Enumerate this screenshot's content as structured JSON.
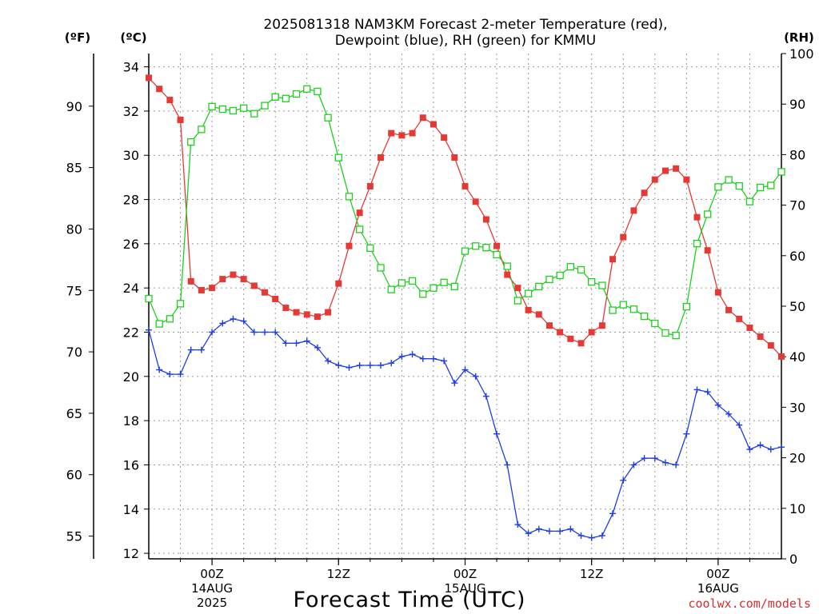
{
  "header": {
    "title_line1": "2025081318 NAM3KM Forecast 2-meter Temperature (red),",
    "title_line2": "Dewpoint (blue), RH (green) for KMMU",
    "unit_f": "(ºF)",
    "unit_c": "(ºC)",
    "unit_rh": "(RH)"
  },
  "footer": {
    "xlabel": "Forecast Time (UTC)",
    "credit": "coolwx.com/models"
  },
  "colors": {
    "temperature": "#e53935",
    "dewpoint": "#1e3de6",
    "rh": "#1fcf1f",
    "grid": "#9a9a9a",
    "credit": "#d32f2f"
  },
  "chart_data": {
    "type": "line",
    "title": "2025081318 NAM3KM Forecast 2-meter Temperature (red), Dewpoint (blue), RH (green) for KMMU",
    "xlabel": "Forecast Time (UTC)",
    "x_unit": "forecast hour (hourly from 2025081318)",
    "x": [
      0,
      1,
      2,
      3,
      4,
      5,
      6,
      7,
      8,
      9,
      10,
      11,
      12,
      13,
      14,
      15,
      16,
      17,
      18,
      19,
      20,
      21,
      22,
      23,
      24,
      25,
      26,
      27,
      28,
      29,
      30,
      31,
      32,
      33,
      34,
      35,
      36,
      37,
      38,
      39,
      40,
      41,
      42,
      43,
      44,
      45,
      46,
      47,
      48,
      49,
      50,
      51,
      52,
      53,
      54,
      55,
      56,
      57,
      58,
      59,
      60
    ],
    "xlim": [
      0,
      60
    ],
    "x_ticks": [
      {
        "hour": 6,
        "label": "00Z",
        "sub1": "14AUG",
        "sub2": "2025"
      },
      {
        "hour": 18,
        "label": "12Z",
        "sub1": "",
        "sub2": ""
      },
      {
        "hour": 30,
        "label": "00Z",
        "sub1": "15AUG",
        "sub2": ""
      },
      {
        "hour": 42,
        "label": "12Z",
        "sub1": "",
        "sub2": ""
      },
      {
        "hour": 54,
        "label": "00Z",
        "sub1": "16AUG",
        "sub2": ""
      }
    ],
    "y_celsius": {
      "label": "(ºC)",
      "lim": [
        11.75,
        34.6
      ],
      "ticks": [
        12,
        14,
        16,
        18,
        20,
        22,
        24,
        26,
        28,
        30,
        32,
        34
      ]
    },
    "y_fahrenheit": {
      "label": "(ºF)",
      "ticks": [
        55,
        60,
        65,
        70,
        75,
        80,
        85,
        90
      ]
    },
    "y_rh": {
      "label": "(RH)",
      "lim": [
        0,
        100
      ],
      "ticks": [
        0,
        10,
        20,
        30,
        40,
        50,
        60,
        70,
        80,
        90,
        100
      ]
    },
    "grid": true,
    "series": [
      {
        "name": "Temperature",
        "axis": "celsius",
        "color": "#e53935",
        "marker": "filled-square",
        "values": [
          33.5,
          33.0,
          32.5,
          31.6,
          24.3,
          23.9,
          24.0,
          24.4,
          24.6,
          24.4,
          24.1,
          23.8,
          23.5,
          23.1,
          22.9,
          22.8,
          22.7,
          22.9,
          24.2,
          25.9,
          27.4,
          28.6,
          29.9,
          31.0,
          30.9,
          31.0,
          31.7,
          31.4,
          30.8,
          29.9,
          28.6,
          27.9,
          27.1,
          25.9,
          24.6,
          24.0,
          23.0,
          22.8,
          22.3,
          22.0,
          21.7,
          21.5,
          22.0,
          22.3,
          25.3,
          26.3,
          27.5,
          28.3,
          28.9,
          29.3,
          29.4,
          28.9,
          27.2,
          25.7,
          23.8,
          23.0,
          22.6,
          22.2,
          21.8,
          21.4,
          20.9
        ]
      },
      {
        "name": "Dewpoint",
        "axis": "celsius",
        "color": "#1e3de6",
        "marker": "plus",
        "values": [
          22.1,
          20.3,
          20.1,
          20.1,
          21.2,
          21.2,
          22.0,
          22.4,
          22.6,
          22.5,
          22.0,
          22.0,
          22.0,
          21.5,
          21.5,
          21.6,
          21.3,
          20.7,
          20.5,
          20.4,
          20.5,
          20.5,
          20.5,
          20.6,
          20.9,
          21.0,
          20.8,
          20.8,
          20.7,
          19.7,
          20.3,
          20.0,
          19.1,
          17.4,
          16.0,
          13.3,
          12.9,
          13.1,
          13.0,
          13.0,
          13.1,
          12.8,
          12.7,
          12.8,
          13.8,
          15.3,
          16.0,
          16.3,
          16.3,
          16.1,
          16.0,
          17.4,
          19.4,
          19.3,
          18.7,
          18.3,
          17.8,
          16.7,
          16.9,
          16.7,
          16.8
        ]
      },
      {
        "name": "RH",
        "axis": "rh",
        "color": "#1fcf1f",
        "marker": "open-square",
        "values": [
          51.5,
          46.5,
          47.5,
          50.5,
          82.5,
          85.0,
          89.5,
          89.0,
          88.7,
          89.2,
          88.1,
          89.7,
          91.4,
          91.1,
          92.0,
          93.0,
          92.5,
          87.3,
          79.4,
          71.7,
          65.2,
          61.5,
          57.6,
          53.3,
          54.6,
          55.0,
          52.4,
          53.6,
          54.7,
          53.9,
          60.9,
          61.9,
          61.6,
          60.2,
          57.9,
          51.1,
          52.5,
          53.9,
          55.3,
          56.1,
          57.8,
          57.2,
          54.8,
          54.1,
          49.2,
          50.3,
          49.4,
          48.0,
          46.6,
          44.7,
          44.2,
          49.9,
          62.4,
          68.2,
          73.6,
          75.0,
          73.8,
          70.7,
          73.5,
          73.9,
          76.6
        ]
      }
    ]
  }
}
